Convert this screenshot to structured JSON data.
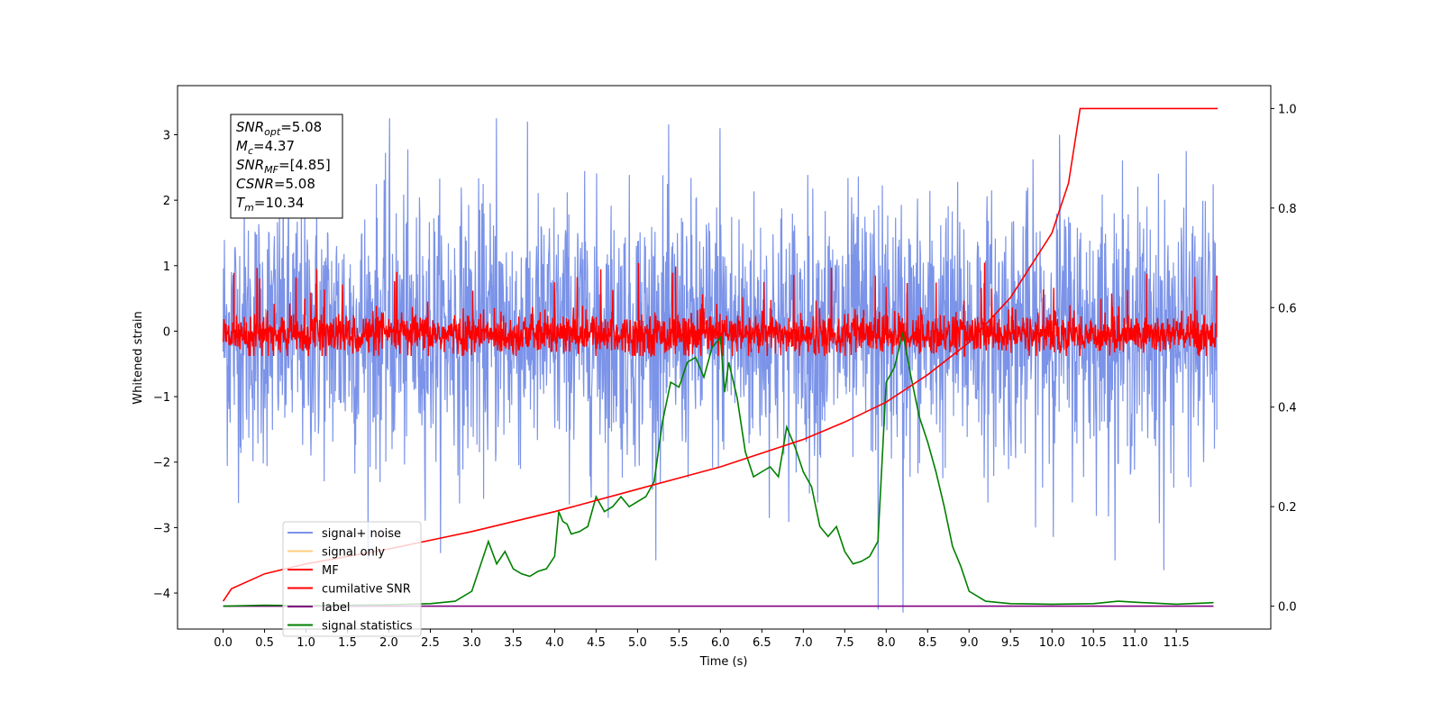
{
  "chart_data": {
    "type": "line",
    "xlabel": "Time (s)",
    "ylabel": "Whitened strain",
    "xlim": [
      -0.55,
      12.64
    ],
    "ylim": [
      -4.55,
      3.75
    ],
    "y2lim": [
      -0.046,
      1.046
    ],
    "x_ticks": [
      "0.0",
      "0.5",
      "1.0",
      "1.5",
      "2.0",
      "2.5",
      "3.0",
      "3.5",
      "4.0",
      "4.5",
      "5.0",
      "5.5",
      "6.0",
      "6.5",
      "7.0",
      "7.5",
      "8.0",
      "8.5",
      "9.0",
      "9.5",
      "10.0",
      "10.5",
      "11.0",
      "11.5"
    ],
    "y_ticks": [
      "−4",
      "−3",
      "−2",
      "−1",
      "0",
      "1",
      "2",
      "3"
    ],
    "y2_ticks": [
      "0.0",
      "0.2",
      "0.4",
      "0.6",
      "0.8",
      "1.0"
    ],
    "info_box": [
      {
        "sym": "SNR",
        "sub": "opt",
        "val": "=5.08"
      },
      {
        "sym": "M",
        "sub": "c",
        "val": "=4.37"
      },
      {
        "sym": "SNR",
        "sub": "MF",
        "val": "=[4.85]"
      },
      {
        "sym": "CSNR",
        "sub": "",
        "val": "=5.08"
      },
      {
        "sym": "T",
        "sub": "m",
        "val": "=10.34"
      }
    ],
    "legend_position": "lower-left",
    "legend": [
      {
        "label": "signal+ noise",
        "color": "#7b93e8"
      },
      {
        "label": "signal only",
        "color": "#ffcc80"
      },
      {
        "label": "MF",
        "color": "#ff0000"
      },
      {
        "label": "cumilative SNR",
        "color": "#ff0000"
      },
      {
        "label": "label",
        "color": "#800080"
      },
      {
        "label": "signal statistics",
        "color": "#008000"
      }
    ],
    "series": [
      {
        "name": "signal+ noise",
        "axis": "left",
        "color": "#7b93e8",
        "x_start": 0.0,
        "x_end": 11.99,
        "spikes": [
          [
            6.0,
            3.1
          ],
          [
            8.2,
            -4.3
          ],
          [
            11.35,
            -3.65
          ],
          [
            7.9,
            -4.25
          ],
          [
            10.1,
            3.0
          ],
          [
            2.0,
            3.25
          ],
          [
            3.3,
            3.25
          ]
        ]
      },
      {
        "name": "MF",
        "axis": "left",
        "color": "#ff0000",
        "x_start": 0.0,
        "x_end": 11.99,
        "level": -0.05,
        "x_end_value": 0.85
      },
      {
        "name": "cumilative SNR",
        "axis": "right",
        "color": "#ff0000",
        "x": [
          0.0,
          0.1,
          0.5,
          1.0,
          2.0,
          3.0,
          4.0,
          5.0,
          6.0,
          7.0,
          7.5,
          8.0,
          8.5,
          9.0,
          9.5,
          10.0,
          10.2,
          10.34,
          12.0
        ],
        "values": [
          0.01,
          0.035,
          0.065,
          0.085,
          0.115,
          0.15,
          0.19,
          0.235,
          0.28,
          0.335,
          0.37,
          0.41,
          0.465,
          0.53,
          0.62,
          0.75,
          0.85,
          1.0,
          1.0
        ]
      },
      {
        "name": "label",
        "axis": "right",
        "color": "#800080",
        "x": [
          0.0,
          11.95
        ],
        "values": [
          0.0,
          0.0
        ]
      },
      {
        "name": "signal statistics",
        "axis": "right",
        "color": "#008000",
        "x": [
          0.0,
          0.5,
          1.0,
          1.5,
          2.0,
          2.5,
          2.8,
          3.0,
          3.1,
          3.2,
          3.3,
          3.4,
          3.5,
          3.6,
          3.7,
          3.8,
          3.9,
          4.0,
          4.05,
          4.1,
          4.15,
          4.2,
          4.3,
          4.4,
          4.5,
          4.6,
          4.7,
          4.8,
          4.9,
          5.0,
          5.1,
          5.2,
          5.3,
          5.4,
          5.5,
          5.6,
          5.7,
          5.8,
          5.9,
          6.0,
          6.05,
          6.1,
          6.2,
          6.3,
          6.4,
          6.5,
          6.6,
          6.7,
          6.8,
          6.9,
          7.0,
          7.1,
          7.2,
          7.3,
          7.4,
          7.5,
          7.6,
          7.7,
          7.8,
          7.9,
          8.0,
          8.1,
          8.2,
          8.3,
          8.4,
          8.5,
          8.6,
          8.7,
          8.8,
          8.9,
          9.0,
          9.2,
          9.5,
          10.0,
          10.5,
          10.8,
          11.0,
          11.5,
          11.95
        ],
        "values": [
          0.0,
          0.002,
          0.001,
          0.002,
          0.003,
          0.005,
          0.01,
          0.03,
          0.08,
          0.13,
          0.085,
          0.11,
          0.075,
          0.065,
          0.06,
          0.07,
          0.075,
          0.1,
          0.19,
          0.17,
          0.165,
          0.145,
          0.15,
          0.16,
          0.22,
          0.19,
          0.2,
          0.22,
          0.2,
          0.21,
          0.22,
          0.25,
          0.37,
          0.45,
          0.44,
          0.49,
          0.5,
          0.46,
          0.52,
          0.54,
          0.43,
          0.49,
          0.42,
          0.31,
          0.26,
          0.27,
          0.28,
          0.26,
          0.36,
          0.32,
          0.27,
          0.24,
          0.16,
          0.14,
          0.16,
          0.11,
          0.085,
          0.09,
          0.1,
          0.13,
          0.45,
          0.48,
          0.55,
          0.46,
          0.38,
          0.33,
          0.27,
          0.2,
          0.12,
          0.08,
          0.03,
          0.01,
          0.005,
          0.004,
          0.005,
          0.01,
          0.008,
          0.004,
          0.007
        ]
      }
    ]
  }
}
